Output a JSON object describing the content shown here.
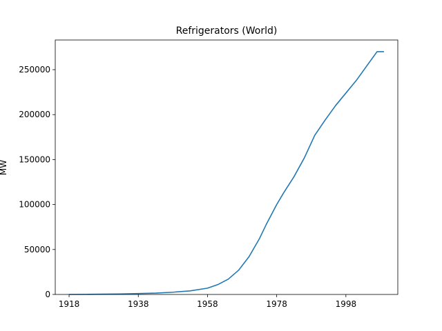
{
  "chart_data": {
    "type": "line",
    "title": "Refrigerators (World)",
    "xlabel": "",
    "ylabel": "MW",
    "xlim": [
      1914,
      2013
    ],
    "ylim": [
      0,
      283000
    ],
    "x_ticks": [
      1918,
      1938,
      1958,
      1978,
      1998
    ],
    "y_ticks": [
      0,
      50000,
      100000,
      150000,
      200000,
      250000
    ],
    "grid": false,
    "series": [
      {
        "color": "#1f77b4",
        "x": [
          1918,
          1923,
          1928,
          1933,
          1938,
          1943,
          1948,
          1953,
          1958,
          1961,
          1964,
          1967,
          1970,
          1973,
          1975,
          1978,
          1980,
          1983,
          1986,
          1989,
          1992,
          1995,
          1998,
          2001,
          2004,
          2007,
          2009
        ],
        "y": [
          0,
          100,
          300,
          500,
          1000,
          1500,
          2500,
          4000,
          7000,
          11000,
          17000,
          27000,
          42000,
          62000,
          78000,
          100000,
          113000,
          131000,
          152000,
          177000,
          194000,
          210000,
          224000,
          238000,
          254000,
          270000,
          270000
        ]
      }
    ]
  }
}
